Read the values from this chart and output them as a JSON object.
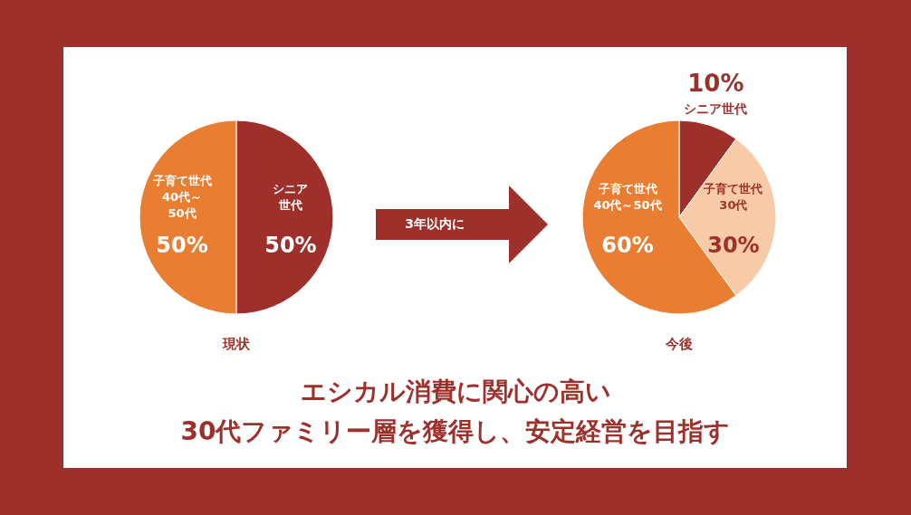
{
  "chart_data": [
    {
      "type": "pie",
      "categories": [
        "シニア世代",
        "子育て世代\n40代～\n50代"
      ],
      "values": [
        50,
        50
      ],
      "colors": [
        "#9e2f2a",
        "#e97e32"
      ],
      "value_labels": [
        "50%",
        "50%"
      ],
      "xlabel": "現状"
    },
    {
      "type": "other",
      "annotations": [
        "3年以内に"
      ]
    },
    {
      "type": "pie",
      "categories": [
        "シニア世代",
        "子育て世代\n30代",
        "子育て世代\n40代～50代"
      ],
      "values": [
        10,
        30,
        60
      ],
      "colors": [
        "#9e2f2a",
        "#f7caa8",
        "#e97e32"
      ],
      "value_labels": [
        "10%",
        "30%",
        "60%"
      ],
      "xlabel": "今後"
    },
    {
      "type": "other",
      "title": "エシカル消費に関心の高い\n30代ファミリー層を獲得し、安定経営を目指す"
    }
  ]
}
